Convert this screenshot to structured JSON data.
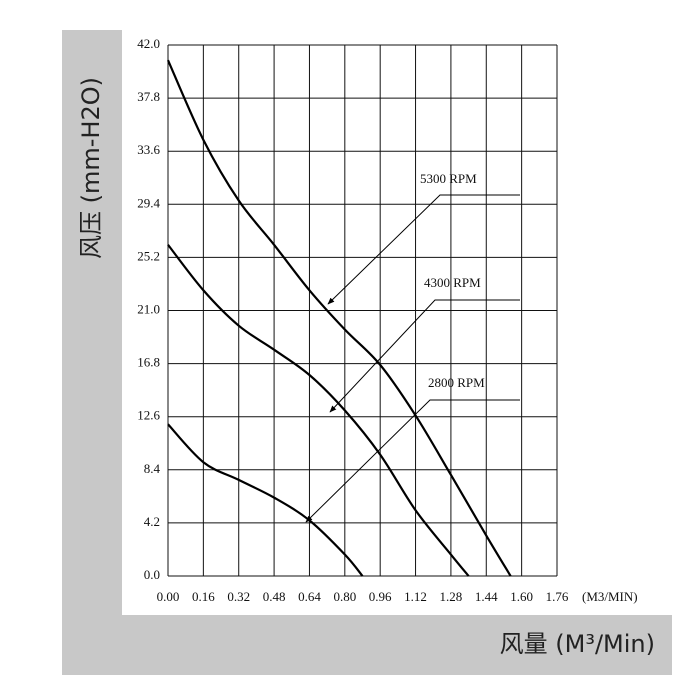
{
  "chart_data": {
    "type": "line",
    "x_label": "(M3/MIN)",
    "x_axis_title": "风量 (M³/Min)",
    "y_axis_title": "风压 (mm-H2O)",
    "x": [
      0,
      0.16,
      0.32,
      0.48,
      0.64,
      0.8,
      0.96,
      1.12,
      1.28,
      1.44
    ],
    "series": [
      {
        "name": "5300 RPM",
        "color": "#000000",
        "x": [
          0,
          0.16,
          0.32,
          0.48,
          0.64,
          0.8,
          0.96,
          1.12,
          1.28,
          1.44,
          1.55
        ],
        "values": [
          40.8,
          34.5,
          29.7,
          26.2,
          22.6,
          19.5,
          16.7,
          12.7,
          8.0,
          3.2,
          0
        ]
      },
      {
        "name": "4300 RPM",
        "color": "#000000",
        "x": [
          0,
          0.16,
          0.32,
          0.48,
          0.64,
          0.8,
          0.96,
          1.12,
          1.28,
          1.36
        ],
        "values": [
          26.2,
          22.6,
          19.8,
          17.9,
          15.9,
          13.1,
          9.6,
          5.2,
          1.7,
          0
        ]
      },
      {
        "name": "2800 RPM",
        "color": "#000000",
        "x": [
          0,
          0.16,
          0.32,
          0.48,
          0.64,
          0.8,
          0.88
        ],
        "values": [
          12.0,
          9.0,
          7.6,
          6.2,
          4.4,
          1.7,
          0
        ]
      }
    ],
    "xlim": [
      0,
      1.76
    ],
    "ylim": [
      0,
      42
    ],
    "xticks": [
      {
        "value": 0,
        "label": "0.00"
      },
      0.16,
      0.32,
      0.48,
      0.64,
      {
        "value": 0.8,
        "label": "0.80"
      },
      0.96,
      1.12,
      1.28,
      1.44,
      {
        "value": 1.6,
        "label": "1.60"
      },
      1.76
    ],
    "yticks": [
      {
        "value": 0,
        "label": "0.0"
      },
      4.2,
      8.4,
      12.6,
      16.8,
      {
        "value": 21,
        "label": "21.0"
      },
      25.2,
      29.4,
      33.6,
      37.8,
      {
        "value": 42,
        "label": "42.0"
      }
    ],
    "grid": true
  }
}
